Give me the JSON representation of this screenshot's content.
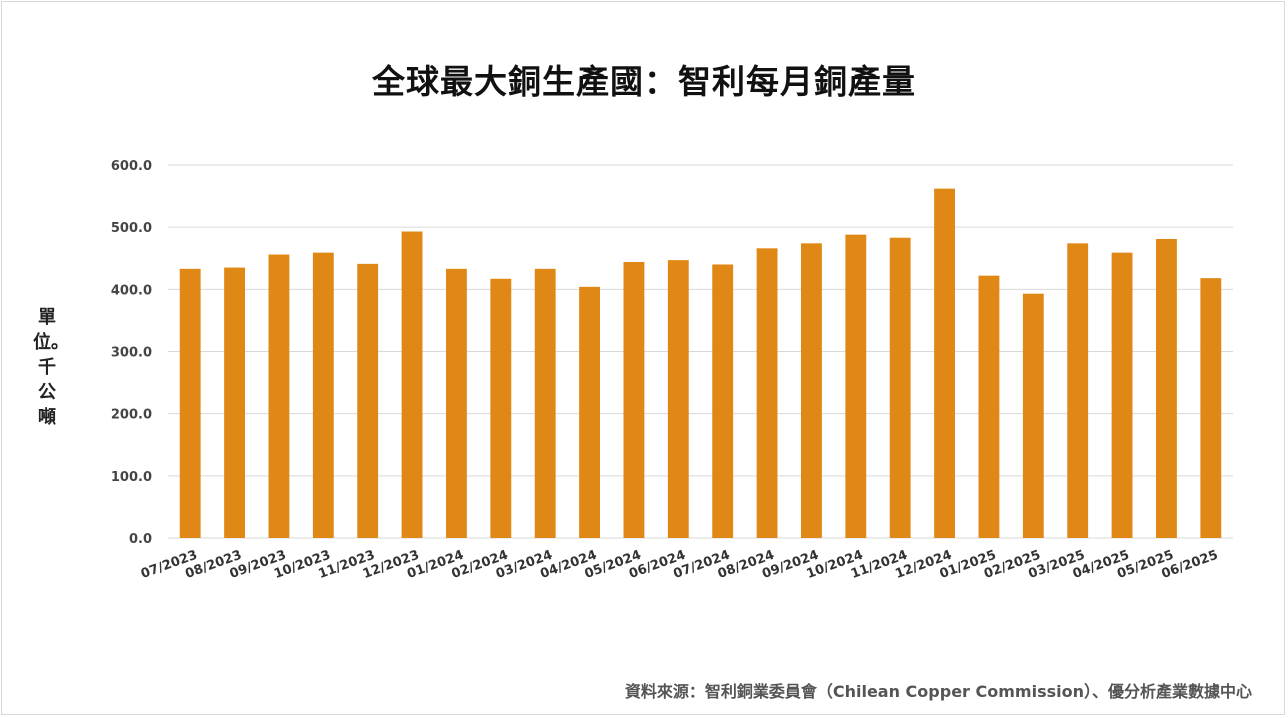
{
  "chart_data": {
    "type": "bar",
    "title": "全球最大銅生產國：智利每月銅產量",
    "ylabel": "單位。千公噸",
    "xlabel": "",
    "ylim": [
      0,
      600
    ],
    "yticks": [
      "0.0",
      "100.0",
      "200.0",
      "300.0",
      "400.0",
      "500.0",
      "600.0"
    ],
    "grid": true,
    "bar_color": "#E08816",
    "categories": [
      "07/2023",
      "08/2023",
      "09/2023",
      "10/2023",
      "11/2023",
      "12/2023",
      "01/2024",
      "02/2024",
      "03/2024",
      "04/2024",
      "05/2024",
      "06/2024",
      "07/2024",
      "08/2024",
      "09/2024",
      "10/2024",
      "11/2024",
      "12/2024",
      "01/2025",
      "02/2025",
      "03/2025",
      "04/2025",
      "05/2025",
      "06/2025"
    ],
    "values": [
      433,
      435,
      456,
      459,
      441,
      493,
      433,
      417,
      433,
      404,
      444,
      447,
      440,
      466,
      474,
      488,
      483,
      562,
      422,
      393,
      474,
      459,
      481,
      418
    ],
    "source": "資料來源：智利銅業委員會（Chilean Copper Commission）、優分析產業數據中心"
  }
}
